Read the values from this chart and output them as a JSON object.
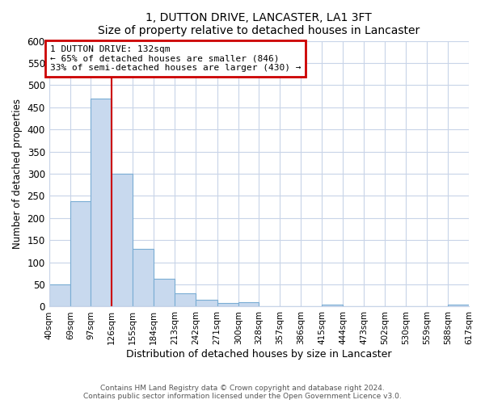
{
  "title": "1, DUTTON DRIVE, LANCASTER, LA1 3FT",
  "subtitle": "Size of property relative to detached houses in Lancaster",
  "xlabel": "Distribution of detached houses by size in Lancaster",
  "ylabel": "Number of detached properties",
  "bar_color": "#c8d9ee",
  "bar_edge_color": "#7aadd4",
  "bins": [
    40,
    69,
    97,
    126,
    155,
    184,
    213,
    242,
    271,
    300,
    328,
    357,
    386,
    415,
    444,
    473,
    502,
    530,
    559,
    588,
    617
  ],
  "bin_labels": [
    "40sqm",
    "69sqm",
    "97sqm",
    "126sqm",
    "155sqm",
    "184sqm",
    "213sqm",
    "242sqm",
    "271sqm",
    "300sqm",
    "328sqm",
    "357sqm",
    "386sqm",
    "415sqm",
    "444sqm",
    "473sqm",
    "502sqm",
    "530sqm",
    "559sqm",
    "588sqm",
    "617sqm"
  ],
  "counts": [
    50,
    238,
    470,
    300,
    130,
    62,
    30,
    15,
    8,
    10,
    0,
    0,
    0,
    5,
    0,
    0,
    0,
    0,
    0,
    5
  ],
  "ylim": [
    0,
    600
  ],
  "yticks": [
    0,
    50,
    100,
    150,
    200,
    250,
    300,
    350,
    400,
    450,
    500,
    550,
    600
  ],
  "property_line_x": 126,
  "annotation_line1": "1 DUTTON DRIVE: 132sqm",
  "annotation_line2": "← 65% of detached houses are smaller (846)",
  "annotation_line3": "33% of semi-detached houses are larger (430) →",
  "annotation_box_color": "#ffffff",
  "annotation_box_edge_color": "#cc0000",
  "annotation_line_color": "#cc0000",
  "footer_line1": "Contains HM Land Registry data © Crown copyright and database right 2024.",
  "footer_line2": "Contains public sector information licensed under the Open Government Licence v3.0.",
  "bg_color": "#ffffff",
  "plot_bg_color": "#ffffff",
  "grid_color": "#c8d4e8"
}
